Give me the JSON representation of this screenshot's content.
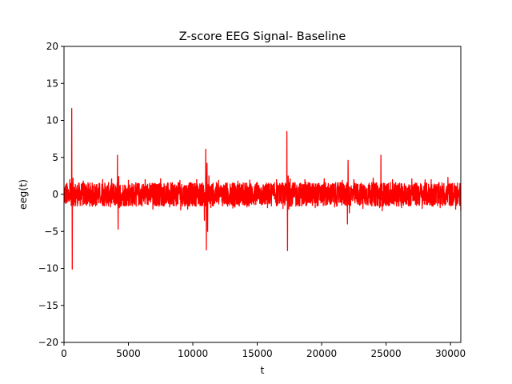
{
  "chart_data": {
    "type": "line",
    "title": "Z-score EEG Signal- Baseline",
    "xlabel": "t",
    "ylabel": "eeg(t)",
    "xlim": [
      0,
      30800
    ],
    "ylim": [
      -20,
      20
    ],
    "x_ticks": [
      0,
      5000,
      10000,
      15000,
      20000,
      25000,
      30000
    ],
    "y_ticks": [
      -20,
      -15,
      -10,
      -5,
      0,
      5,
      10,
      15,
      20
    ],
    "grid": false,
    "legend": "none",
    "series": [
      {
        "color": "#ff0000",
        "x": [
          0,
          300,
          450,
          560,
          600,
          640,
          700,
          900,
          1500,
          2200,
          3000,
          3600,
          4150,
          4200,
          4250,
          4300,
          5000,
          5600,
          6300,
          6900,
          7500,
          8200,
          9000,
          9600,
          10300,
          10900,
          11000,
          11050,
          11100,
          11150,
          11250,
          11400,
          12000,
          12700,
          13500,
          14200,
          15000,
          15800,
          16500,
          17000,
          17300,
          17350,
          17400,
          17450,
          17550,
          18000,
          18700,
          19500,
          20200,
          21000,
          21600,
          22000,
          22050,
          22150,
          22500,
          23200,
          24000,
          24500,
          24600,
          24700,
          25500,
          26200,
          27000,
          27800,
          28500,
          29200,
          29800,
          30400,
          30800
        ],
        "y": [
          0.5,
          -1.0,
          2.0,
          -1.5,
          11.6,
          -10.1,
          2.2,
          -1.5,
          1.8,
          -1.6,
          2.0,
          -1.7,
          5.3,
          -4.7,
          2.4,
          -1.8,
          1.9,
          -1.6,
          2.0,
          -2.0,
          2.1,
          -1.7,
          1.9,
          -2.0,
          2.0,
          -3.5,
          6.1,
          -7.5,
          4.2,
          -5.0,
          2.5,
          -1.8,
          1.9,
          -1.6,
          1.8,
          -1.7,
          1.6,
          -1.8,
          2.0,
          -1.9,
          8.5,
          -7.6,
          2.5,
          -2.0,
          2.1,
          -1.6,
          2.0,
          -1.8,
          2.1,
          -1.7,
          1.9,
          -4.0,
          4.6,
          -2.5,
          2.0,
          -1.9,
          2.2,
          -1.8,
          5.3,
          -2.2,
          2.0,
          -1.8,
          2.1,
          -1.9,
          2.0,
          -1.8,
          2.3,
          -2.0,
          -2.2
        ]
      }
    ]
  }
}
